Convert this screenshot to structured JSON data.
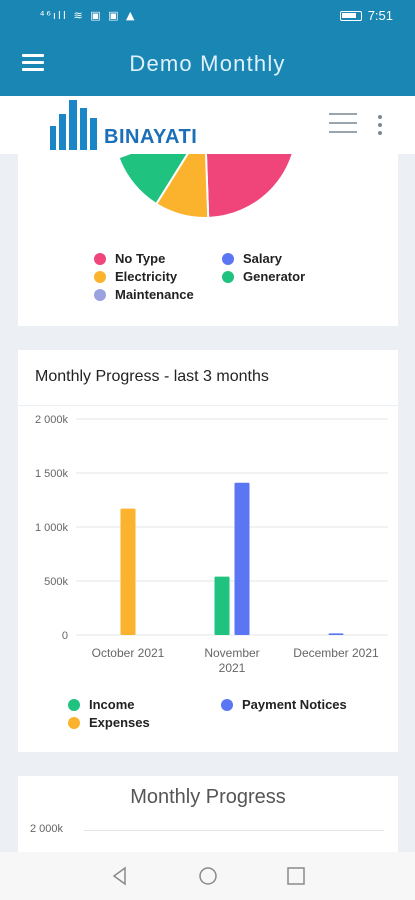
{
  "status_bar": {
    "left_text": "⁴⁶ıll ≋ ▣ ▣ ▲",
    "time": "7:51"
  },
  "app_bar": {
    "title": "Demo Monthly"
  },
  "brand": {
    "logo_text": "BINAYATI"
  },
  "pie_card": {
    "legend": [
      {
        "label": "No Type",
        "color": "#f0457a"
      },
      {
        "label": "Salary",
        "color": "#5a76f2"
      },
      {
        "label": "Electricity",
        "color": "#fbb22c"
      },
      {
        "label": "Generator",
        "color": "#1fc27f"
      },
      {
        "label": "Maintenance",
        "color": "#9aa3e0"
      }
    ]
  },
  "progress_card": {
    "title": "Monthly Progress - last 3 months",
    "legend": [
      {
        "label": "Income",
        "color": "#1fc27f"
      },
      {
        "label": "Payment Notices",
        "color": "#5a76f2"
      },
      {
        "label": "Expenses",
        "color": "#fbb22c"
      }
    ]
  },
  "progress_card2": {
    "title": "Monthly Progress",
    "tick_top": "2 000k"
  },
  "chart_data": {
    "type": "bar",
    "title": "Monthly Progress - last 3 months",
    "categories": [
      "October 2021",
      "November 2021",
      "December 2021"
    ],
    "category_lines": [
      [
        "October 2021"
      ],
      [
        "November",
        "2021"
      ],
      [
        "December 2021"
      ]
    ],
    "y_ticks": [
      "0",
      "500k",
      "1 000k",
      "1 500k",
      "2 000k"
    ],
    "ylim": [
      0,
      2000
    ],
    "y_unit": "k",
    "grid": true,
    "legend_position": "bottom",
    "series": [
      {
        "name": "Income",
        "color": "#1fc27f",
        "values": [
          0,
          540,
          0
        ]
      },
      {
        "name": "Payment Notices",
        "color": "#5a76f2",
        "values": [
          0,
          1410,
          15
        ]
      },
      {
        "name": "Expenses",
        "color": "#fbb22c",
        "values": [
          1170,
          0,
          0
        ]
      }
    ]
  }
}
